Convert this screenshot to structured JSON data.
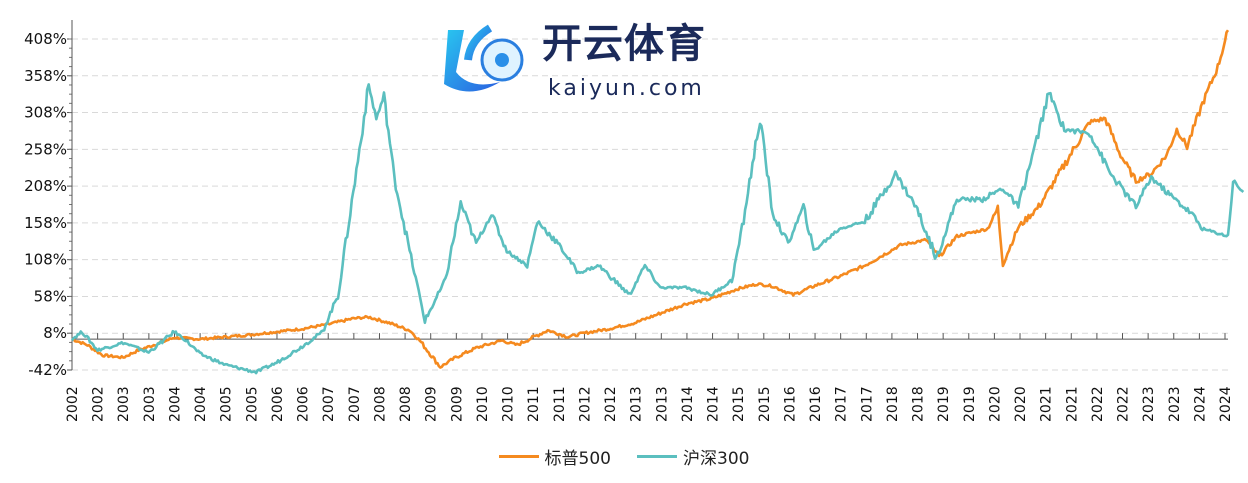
{
  "chart_data": {
    "type": "line",
    "title": "",
    "xlabel": "",
    "ylabel": "",
    "ylim": [
      -42,
      420
    ],
    "yticks": [
      "-42%",
      "8%",
      "58%",
      "108%",
      "158%",
      "208%",
      "258%",
      "308%",
      "358%",
      "408%"
    ],
    "ytick_values": [
      -42,
      8,
      58,
      108,
      158,
      208,
      258,
      308,
      358,
      408
    ],
    "xlim": [
      2002.0,
      2024.6
    ],
    "xticks": [
      "2002",
      "2002",
      "2003",
      "2003",
      "2004",
      "2004",
      "2005",
      "2005",
      "2006",
      "2006",
      "2007",
      "2007",
      "2008",
      "2008",
      "2009",
      "2009",
      "2010",
      "2010",
      "2011",
      "2011",
      "2012",
      "2012",
      "2013",
      "2013",
      "2014",
      "2014",
      "2015",
      "2015",
      "2016",
      "2016",
      "2017",
      "2017",
      "2018",
      "2018",
      "2019",
      "2019",
      "2020",
      "2020",
      "2021",
      "2021",
      "2022",
      "2022",
      "2023",
      "2023",
      "2024",
      "2024"
    ],
    "grid": "horizontal-dashed",
    "legend_position": "bottom-center",
    "series": [
      {
        "name": "标普500",
        "color": "#F58A1F",
        "x": [
          2002.0,
          2002.3,
          2002.6,
          2003.0,
          2003.3,
          2003.6,
          2004.0,
          2004.5,
          2005.0,
          2005.5,
          2006.0,
          2006.5,
          2007.0,
          2007.5,
          2007.8,
          2008.2,
          2008.6,
          2008.8,
          2009.2,
          2009.5,
          2009.9,
          2010.4,
          2010.7,
          2011.3,
          2011.7,
          2012.0,
          2012.5,
          2013.0,
          2013.5,
          2014.0,
          2014.5,
          2015.0,
          2015.4,
          2015.7,
          2016.1,
          2016.5,
          2017.0,
          2017.5,
          2018.0,
          2018.2,
          2018.7,
          2018.95,
          2019.3,
          2019.9,
          2020.1,
          2020.2,
          2020.5,
          2020.9,
          2021.3,
          2021.9,
          2022.2,
          2022.5,
          2022.8,
          2023.1,
          2023.4,
          2023.6,
          2023.8,
          2024.1,
          2024.4,
          2024.6
        ],
        "y": [
          0,
          -8,
          -22,
          -25,
          -15,
          -8,
          2,
          0,
          3,
          6,
          10,
          14,
          20,
          28,
          30,
          22,
          12,
          -2,
          -38,
          -25,
          -12,
          -2,
          -8,
          12,
          3,
          8,
          14,
          22,
          35,
          48,
          55,
          68,
          75,
          72,
          60,
          72,
          85,
          100,
          120,
          128,
          135,
          112,
          140,
          150,
          178,
          102,
          152,
          180,
          225,
          295,
          300,
          250,
          215,
          225,
          250,
          285,
          262,
          320,
          370,
          420
        ]
      },
      {
        "name": "沪深300",
        "color": "#5BBFBF",
        "x": [
          2002.0,
          2002.2,
          2002.5,
          2003.0,
          2003.5,
          2004.0,
          2004.2,
          2004.5,
          2005.0,
          2005.6,
          2006.0,
          2006.5,
          2006.9,
          2007.2,
          2007.5,
          2007.8,
          2007.95,
          2008.1,
          2008.3,
          2008.6,
          2008.9,
          2009.3,
          2009.6,
          2009.9,
          2010.2,
          2010.5,
          2010.9,
          2011.1,
          2011.5,
          2011.9,
          2012.3,
          2012.9,
          2013.2,
          2013.5,
          2014.0,
          2014.5,
          2014.9,
          2015.1,
          2015.45,
          2015.7,
          2016.0,
          2016.3,
          2016.5,
          2017.0,
          2017.5,
          2018.1,
          2018.5,
          2018.9,
          2019.3,
          2019.8,
          2020.2,
          2020.5,
          2020.8,
          2021.1,
          2021.4,
          2021.9,
          2022.3,
          2022.8,
          2023.1,
          2023.4,
          2023.9,
          2024.1,
          2024.6,
          2024.7,
          2024.9
        ],
        "y": [
          0,
          10,
          -15,
          -5,
          -18,
          10,
          0,
          -20,
          -35,
          -45,
          -32,
          -10,
          10,
          60,
          200,
          345,
          300,
          330,
          220,
          120,
          25,
          80,
          185,
          130,
          170,
          120,
          100,
          160,
          130,
          90,
          100,
          60,
          100,
          70,
          70,
          60,
          80,
          150,
          300,
          170,
          130,
          180,
          120,
          150,
          160,
          225,
          180,
          110,
          190,
          190,
          205,
          180,
          255,
          335,
          285,
          280,
          225,
          180,
          220,
          200,
          170,
          150,
          140,
          215,
          200
        ]
      }
    ]
  },
  "legend": [
    "标普500",
    "沪深300"
  ],
  "watermark": {
    "cn": "开云体育",
    "en": "kaiyun.com"
  }
}
